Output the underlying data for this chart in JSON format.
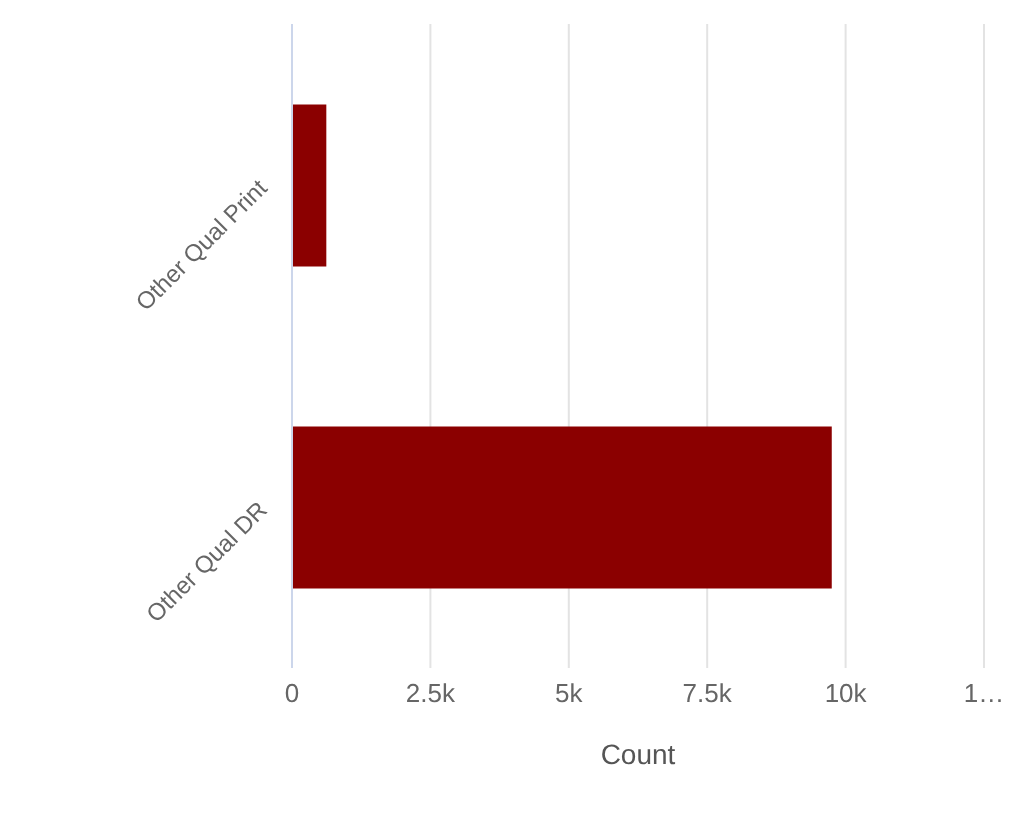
{
  "chart_data": {
    "type": "bar",
    "orientation": "horizontal",
    "xlabel": "Count",
    "categories": [
      "Other Qual Print",
      "Other Qual DR"
    ],
    "series": [
      {
        "color": "#8b0000",
        "values": [
          620,
          9750
        ]
      }
    ],
    "xlim": [
      0,
      12500
    ],
    "xticks": [
      0,
      {
        "value": 2500,
        "label": "2.5k"
      },
      {
        "value": 5000,
        "label": "5k"
      },
      {
        "value": 7500,
        "label": "7.5k"
      },
      {
        "value": 10000,
        "label": "10k"
      },
      {
        "value": 12500,
        "label": "1…"
      }
    ],
    "grid": "x",
    "legend": false
  }
}
